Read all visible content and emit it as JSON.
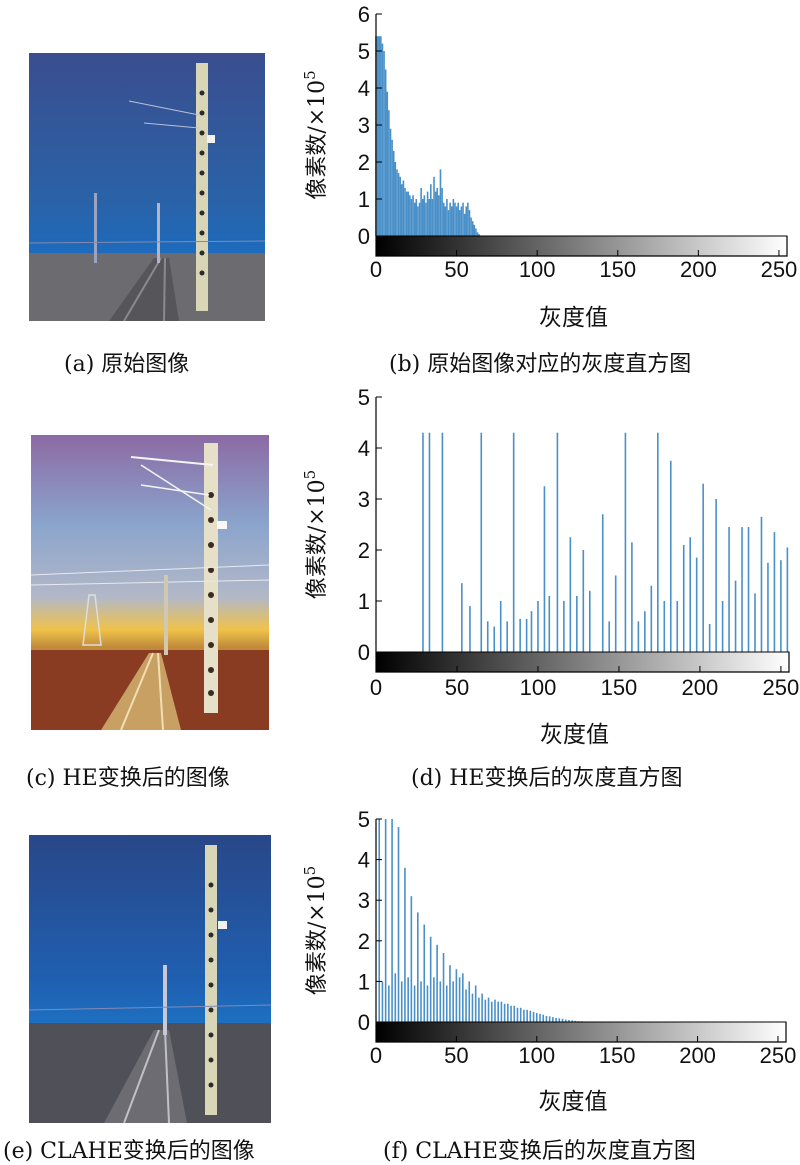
{
  "figure": {
    "panels": [
      {
        "id": "a",
        "caption": "(a) 原始图像",
        "image_desc": "railway scene, original dark bluish image",
        "palette": {
          "sky_top": "#3d5a9b",
          "sky_bottom": "#1f66b8",
          "ground": "#6c6c70",
          "pole": "#d9d6b8"
        }
      },
      {
        "id": "b",
        "caption": "(b) 原始图像对应的灰度直方图"
      },
      {
        "id": "c",
        "caption": "(c) HE变换后的图像",
        "image_desc": "railway scene after histogram equalization",
        "palette": {
          "sky_top": "#8a6fa7",
          "sky_mid": "#8aa0c8",
          "horizon": "#f0c24a",
          "ground": "#8a3c22",
          "pole": "#e6e0c8"
        }
      },
      {
        "id": "d",
        "caption": "(d) HE变换后的灰度直方图"
      },
      {
        "id": "e",
        "caption": "(e) CLAHE变换后的图像",
        "image_desc": "railway scene after CLAHE",
        "palette": {
          "sky_top": "#2b4a8c",
          "sky_bottom": "#1e6fc2",
          "ground": "#505058",
          "pole": "#d9d6b8"
        }
      },
      {
        "id": "f",
        "caption": "(f) CLAHE变换后的灰度直方图"
      }
    ]
  },
  "chart_data": [
    {
      "type": "bar",
      "panel": "b",
      "xlabel": "灰度值",
      "ylabel": "像素数/×10",
      "ylabel_exponent": "5",
      "xlim": [
        0,
        255
      ],
      "ylim": [
        -0.7,
        6
      ],
      "xticks": [
        0,
        50,
        100,
        150,
        200,
        250
      ],
      "yticks": [
        0,
        1,
        2,
        3,
        4,
        5,
        6
      ],
      "bar_color": "#4a90c8",
      "colorbar": true,
      "bins": [
        [
          0,
          5.4
        ],
        [
          1,
          5.4
        ],
        [
          2,
          5.4
        ],
        [
          3,
          5.4
        ],
        [
          4,
          5.2
        ],
        [
          5,
          5.0
        ],
        [
          6,
          4.5
        ],
        [
          7,
          3.9
        ],
        [
          8,
          3.4
        ],
        [
          9,
          2.9
        ],
        [
          10,
          2.6
        ],
        [
          11,
          2.3
        ],
        [
          12,
          2.0
        ],
        [
          13,
          1.8
        ],
        [
          14,
          1.7
        ],
        [
          15,
          1.6
        ],
        [
          16,
          1.4
        ],
        [
          17,
          1.5
        ],
        [
          18,
          1.3
        ],
        [
          19,
          1.2
        ],
        [
          20,
          1.2
        ],
        [
          21,
          1.1
        ],
        [
          22,
          1.0
        ],
        [
          23,
          1.1
        ],
        [
          24,
          0.9
        ],
        [
          25,
          1.0
        ],
        [
          26,
          0.8
        ],
        [
          27,
          0.9
        ],
        [
          28,
          1.3
        ],
        [
          29,
          1.0
        ],
        [
          30,
          1.1
        ],
        [
          31,
          0.9
        ],
        [
          32,
          1.2
        ],
        [
          33,
          1.0
        ],
        [
          34,
          1.4
        ],
        [
          35,
          1.0
        ],
        [
          36,
          1.6
        ],
        [
          37,
          1.2
        ],
        [
          38,
          1.3
        ],
        [
          39,
          1.1
        ],
        [
          40,
          1.8
        ],
        [
          41,
          1.3
        ],
        [
          42,
          0.9
        ],
        [
          43,
          0.8
        ],
        [
          44,
          1.0
        ],
        [
          45,
          0.7
        ],
        [
          46,
          0.9
        ],
        [
          47,
          0.8
        ],
        [
          48,
          1.0
        ],
        [
          49,
          0.9
        ],
        [
          50,
          0.8
        ],
        [
          51,
          0.9
        ],
        [
          52,
          0.7
        ],
        [
          53,
          0.8
        ],
        [
          54,
          0.9
        ],
        [
          55,
          0.6
        ],
        [
          56,
          0.8
        ],
        [
          57,
          0.9
        ],
        [
          58,
          0.7
        ],
        [
          59,
          0.5
        ],
        [
          60,
          0.4
        ],
        [
          61,
          0.3
        ],
        [
          62,
          0.2
        ],
        [
          63,
          0.1
        ],
        [
          64,
          0.05
        ]
      ]
    },
    {
      "type": "bar",
      "panel": "d",
      "xlabel": "灰度值",
      "ylabel": "像素数/×10",
      "ylabel_exponent": "5",
      "xlim": [
        0,
        255
      ],
      "ylim": [
        -0.6,
        5
      ],
      "xticks": [
        0,
        50,
        100,
        150,
        200,
        250
      ],
      "yticks": [
        0,
        1,
        2,
        3,
        4,
        5
      ],
      "bar_color": "#4a90c8",
      "colorbar": true,
      "bins": [
        [
          29,
          4.3
        ],
        [
          33,
          4.3
        ],
        [
          41,
          4.3
        ],
        [
          53,
          1.35
        ],
        [
          58,
          0.9
        ],
        [
          65,
          4.3
        ],
        [
          69,
          0.6
        ],
        [
          73,
          0.5
        ],
        [
          77,
          1.0
        ],
        [
          81,
          0.6
        ],
        [
          85,
          4.3
        ],
        [
          89,
          0.65
        ],
        [
          93,
          0.65
        ],
        [
          96,
          0.8
        ],
        [
          100,
          1.0
        ],
        [
          104,
          3.25
        ],
        [
          107,
          1.1
        ],
        [
          112,
          4.3
        ],
        [
          116,
          1.0
        ],
        [
          120,
          2.25
        ],
        [
          124,
          1.1
        ],
        [
          128,
          2.0
        ],
        [
          132,
          1.2
        ],
        [
          140,
          2.7
        ],
        [
          144,
          0.6
        ],
        [
          148,
          1.5
        ],
        [
          154,
          4.3
        ],
        [
          158,
          2.15
        ],
        [
          162,
          0.6
        ],
        [
          166,
          0.8
        ],
        [
          170,
          1.3
        ],
        [
          174,
          4.3
        ],
        [
          178,
          1.0
        ],
        [
          182,
          3.75
        ],
        [
          186,
          1.0
        ],
        [
          190,
          2.1
        ],
        [
          194,
          2.25
        ],
        [
          198,
          1.85
        ],
        [
          202,
          3.3
        ],
        [
          206,
          0.55
        ],
        [
          210,
          3.0
        ],
        [
          214,
          1.0
        ],
        [
          218,
          2.45
        ],
        [
          222,
          1.4
        ],
        [
          226,
          2.45
        ],
        [
          230,
          2.45
        ],
        [
          234,
          1.15
        ],
        [
          238,
          2.65
        ],
        [
          242,
          1.75
        ],
        [
          246,
          2.35
        ],
        [
          250,
          1.8
        ],
        [
          254,
          2.05
        ]
      ]
    },
    {
      "type": "bar",
      "panel": "f",
      "xlabel": "灰度值",
      "ylabel": "像素数/×10",
      "ylabel_exponent": "5",
      "xlim": [
        0,
        255
      ],
      "ylim": [
        -0.6,
        5
      ],
      "xticks": [
        0,
        50,
        100,
        150,
        200,
        250
      ],
      "yticks": [
        0,
        1,
        2,
        3,
        4,
        5
      ],
      "bar_color": "#4a90c8",
      "colorbar": true,
      "bins": [
        [
          2,
          5.0
        ],
        [
          4,
          1.0
        ],
        [
          6,
          5.0
        ],
        [
          8,
          0.9
        ],
        [
          10,
          5.0
        ],
        [
          12,
          1.2
        ],
        [
          14,
          4.8
        ],
        [
          16,
          1.0
        ],
        [
          18,
          3.8
        ],
        [
          20,
          1.1
        ],
        [
          22,
          3.1
        ],
        [
          24,
          0.9
        ],
        [
          26,
          2.7
        ],
        [
          28,
          1.0
        ],
        [
          30,
          2.4
        ],
        [
          32,
          0.9
        ],
        [
          34,
          2.1
        ],
        [
          36,
          1.1
        ],
        [
          38,
          1.9
        ],
        [
          40,
          1.0
        ],
        [
          42,
          1.7
        ],
        [
          44,
          0.9
        ],
        [
          46,
          1.4
        ],
        [
          48,
          1.0
        ],
        [
          50,
          1.3
        ],
        [
          52,
          1.1
        ],
        [
          54,
          1.2
        ],
        [
          56,
          0.8
        ],
        [
          58,
          1.0
        ],
        [
          60,
          0.7
        ],
        [
          62,
          0.9
        ],
        [
          64,
          0.6
        ],
        [
          66,
          0.7
        ],
        [
          68,
          0.55
        ],
        [
          70,
          0.6
        ],
        [
          72,
          0.5
        ],
        [
          74,
          0.55
        ],
        [
          76,
          0.5
        ],
        [
          78,
          0.5
        ],
        [
          80,
          0.45
        ],
        [
          82,
          0.45
        ],
        [
          84,
          0.4
        ],
        [
          86,
          0.4
        ],
        [
          88,
          0.35
        ],
        [
          90,
          0.35
        ],
        [
          92,
          0.3
        ],
        [
          94,
          0.3
        ],
        [
          96,
          0.28
        ],
        [
          98,
          0.25
        ],
        [
          100,
          0.22
        ],
        [
          102,
          0.2
        ],
        [
          104,
          0.18
        ],
        [
          106,
          0.15
        ],
        [
          108,
          0.14
        ],
        [
          110,
          0.12
        ],
        [
          112,
          0.1
        ],
        [
          114,
          0.09
        ],
        [
          116,
          0.08
        ],
        [
          118,
          0.06
        ],
        [
          120,
          0.05
        ],
        [
          122,
          0.04
        ],
        [
          124,
          0.03
        ],
        [
          126,
          0.02
        ],
        [
          128,
          0.02
        ],
        [
          130,
          0.01
        ]
      ]
    }
  ]
}
